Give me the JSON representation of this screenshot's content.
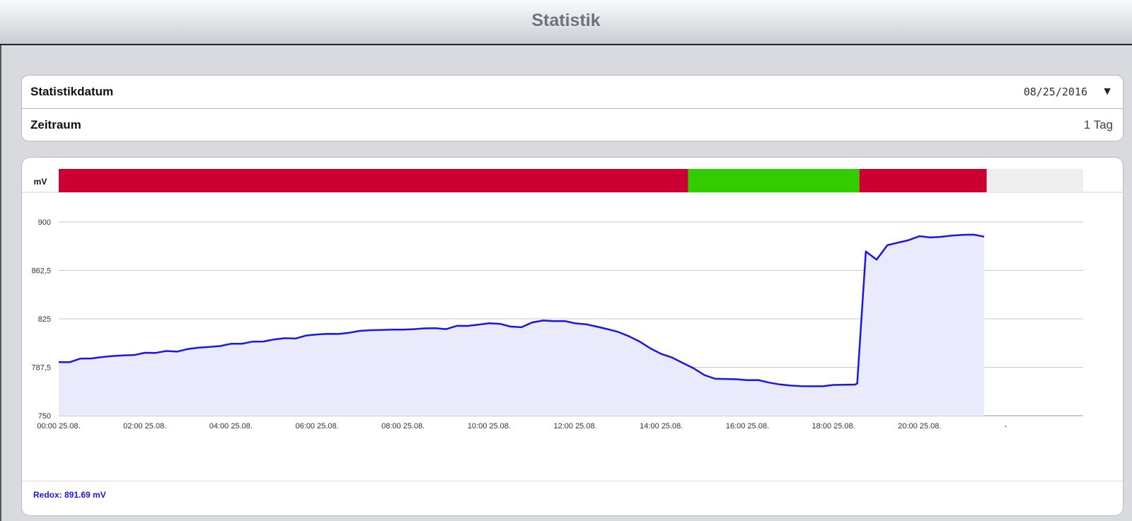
{
  "header": {
    "title": "Statistik"
  },
  "settings": {
    "date_label": "Statistikdatum",
    "date_value": "08/25/2016",
    "dropdown_glyph": "▼",
    "period_label": "Zeitraum",
    "period_value": "1 Tag"
  },
  "status_bar": {
    "unit_label": "mV",
    "segments": [
      {
        "from": 0,
        "to": 14.62,
        "color": "#cc0033"
      },
      {
        "from": 14.62,
        "to": 18.6,
        "color": "#33cc00"
      },
      {
        "from": 18.6,
        "to": 21.56,
        "color": "#cc0033"
      },
      {
        "from": 21.56,
        "to": 23.8,
        "color": "#eeeeee"
      }
    ]
  },
  "readout": {
    "text": "Redox: 891.69 mV"
  },
  "colors": {
    "line": "#1a17e6",
    "fill": "#e9eafb",
    "grid": "#c8c8c8"
  },
  "chart_data": {
    "type": "area",
    "ylim": [
      750,
      900
    ],
    "yticks": [
      "900",
      "862,5",
      "825",
      "787,5",
      "750"
    ],
    "ytick_values": [
      900,
      862.5,
      825,
      787.5,
      750
    ],
    "xlim": [
      0,
      23.8
    ],
    "xticks": [
      "00:00 25.08.",
      "02:00 25.08.",
      "04:00 25.08.",
      "06:00 25.08.",
      "08:00 25.08.",
      "10:00 25.08.",
      "12:00 25.08.",
      "14:00 25.08.",
      "16:00 25.08.",
      "18:00 25.08.",
      "20:00 25.08.",
      "-"
    ],
    "xtick_values": [
      0,
      2,
      4,
      6,
      8,
      10,
      12,
      14,
      16,
      18,
      20,
      22
    ],
    "series": [
      {
        "x": [
          0.0,
          0.25,
          0.5,
          0.75,
          1.0,
          1.25,
          1.5,
          1.75,
          2.0,
          2.25,
          2.5,
          2.75,
          3.0,
          3.25,
          3.5,
          3.75,
          4.0,
          4.25,
          4.5,
          4.75,
          5.0,
          5.25,
          5.5,
          5.75,
          6.0,
          6.25,
          6.5,
          6.75,
          7.0,
          7.25,
          7.5,
          7.75,
          8.0,
          8.25,
          8.5,
          8.75,
          9.0,
          9.25,
          9.5,
          9.75,
          10.0,
          10.25,
          10.5,
          10.75,
          11.0,
          11.25,
          11.5,
          11.75,
          12.0,
          12.25,
          12.5,
          12.75,
          13.0,
          13.25,
          13.5,
          13.75,
          14.0,
          14.25,
          14.5,
          14.75,
          15.0,
          15.25,
          15.5,
          15.75,
          16.0,
          16.25,
          16.5,
          16.75,
          17.0,
          17.25,
          17.5,
          17.75,
          18.0,
          18.25,
          18.5,
          18.55,
          18.75,
          19.0,
          19.25,
          19.5,
          19.75,
          20.0,
          20.25,
          20.5,
          20.75,
          21.0,
          21.25,
          21.5
        ],
        "values": [
          791.5,
          791.4,
          794.2,
          794.3,
          795.4,
          796.2,
          796.7,
          796.9,
          798.7,
          798.6,
          800.1,
          799.6,
          801.6,
          802.7,
          803.2,
          803.9,
          805.7,
          805.7,
          807.3,
          807.4,
          809.0,
          810.0,
          809.7,
          812.1,
          812.9,
          813.4,
          813.3,
          814.2,
          815.7,
          816.2,
          816.4,
          816.6,
          816.6,
          817.0,
          817.6,
          817.7,
          817.0,
          819.6,
          819.5,
          820.5,
          821.6,
          821.1,
          819.0,
          818.5,
          822.2,
          823.7,
          823.2,
          823.3,
          821.5,
          820.8,
          819.0,
          817.0,
          814.8,
          811.5,
          807.3,
          802.0,
          797.8,
          795.0,
          790.8,
          786.7,
          781.4,
          778.6,
          778.4,
          778.2,
          777.5,
          777.6,
          775.6,
          774.2,
          773.3,
          772.9,
          772.8,
          772.8,
          773.8,
          774.0,
          774.1,
          774.9,
          877.1,
          870.8,
          882.0,
          884.0,
          886.0,
          889.0,
          888.0,
          888.5,
          889.5,
          890.0,
          890.2,
          888.6
        ]
      }
    ]
  }
}
